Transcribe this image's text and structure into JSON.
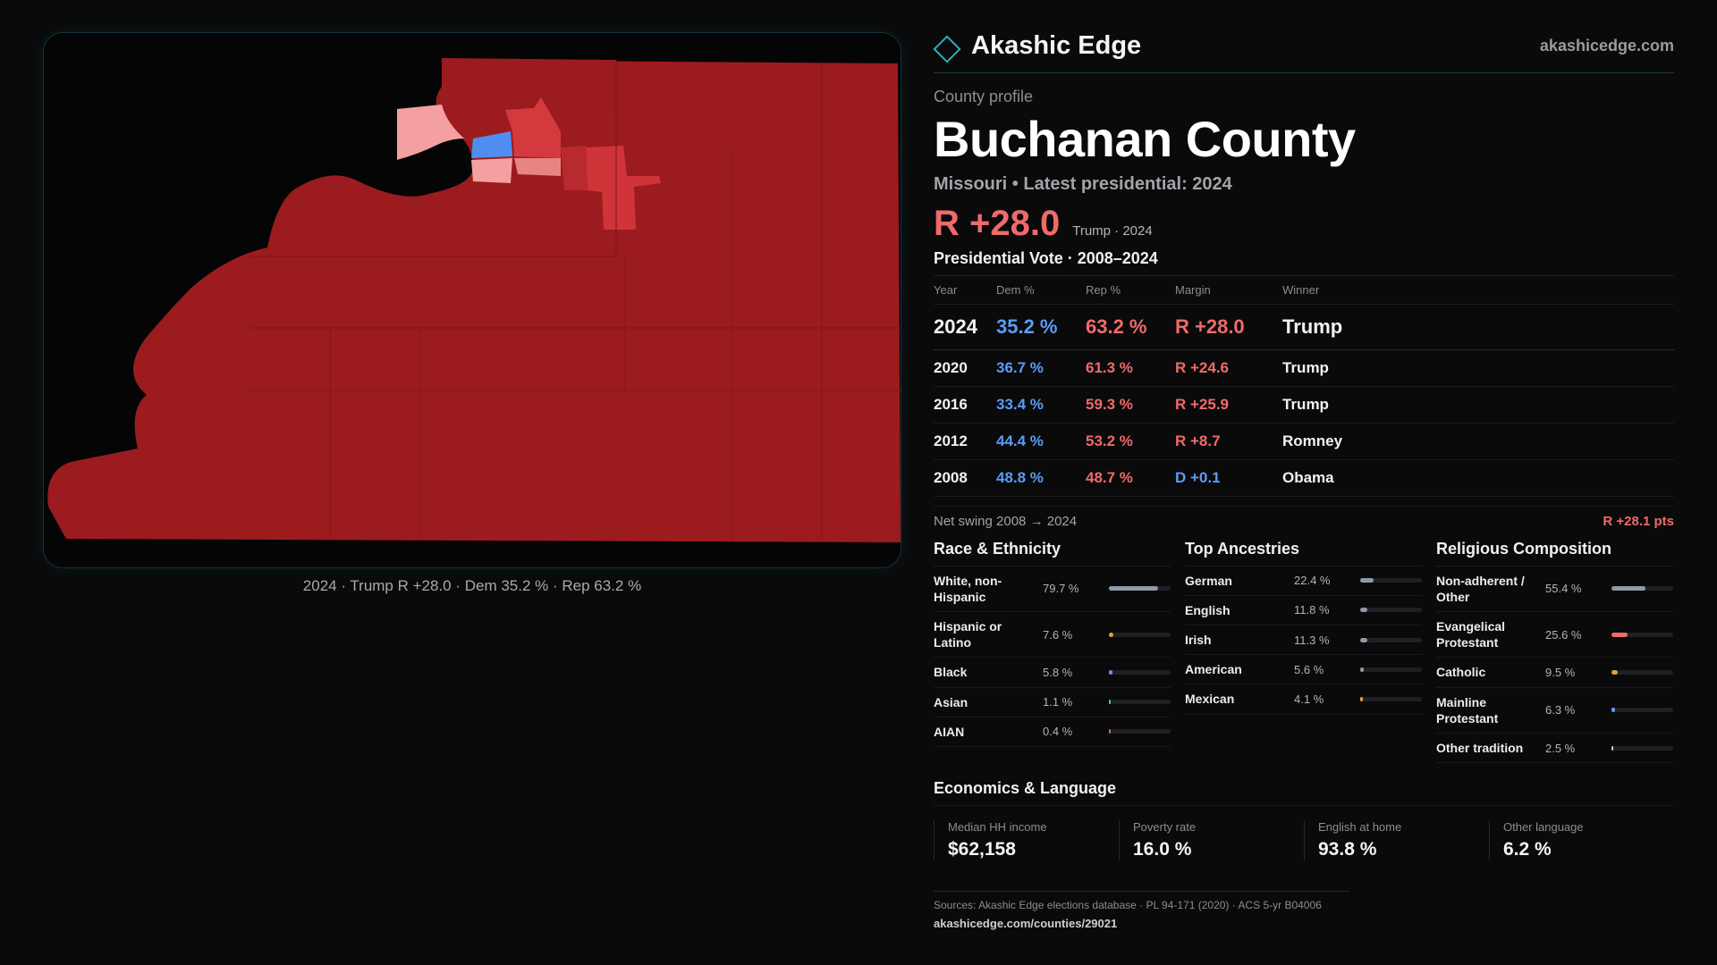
{
  "brand": {
    "name": "Akashic Edge",
    "url": "akashicedge.com",
    "accent": "#2ab0b8"
  },
  "profile": {
    "eyebrow": "County profile",
    "title": "Buchanan County",
    "subtitle": "Missouri • Latest presidential: 2024",
    "margin": "R +28.0",
    "margin_note": "Trump · 2024"
  },
  "map": {
    "caption": "2024 · Trump R +28.0 · Dem 35.2 % · Rep 63.2 %",
    "colors": {
      "strong_rep": "#9c1b1f",
      "mid_rep": "#d33a3e",
      "light_rep": "#f4a0a0",
      "dem": "#4f8ef0",
      "water": "#050506"
    }
  },
  "votes": {
    "title": "Presidential Vote · 2008–2024",
    "headers": {
      "year": "Year",
      "dem": "Dem %",
      "rep": "Rep %",
      "margin": "Margin",
      "winner": "Winner"
    },
    "rows": [
      {
        "year": "2024",
        "dem": "35.2 %",
        "rep": "63.2 %",
        "margin": "R +28.0",
        "party": "R",
        "winner": "Trump"
      },
      {
        "year": "2020",
        "dem": "36.7 %",
        "rep": "61.3 %",
        "margin": "R +24.6",
        "party": "R",
        "winner": "Trump"
      },
      {
        "year": "2016",
        "dem": "33.4 %",
        "rep": "59.3 %",
        "margin": "R +25.9",
        "party": "R",
        "winner": "Trump"
      },
      {
        "year": "2012",
        "dem": "44.4 %",
        "rep": "53.2 %",
        "margin": "R +8.7",
        "party": "R",
        "winner": "Romney"
      },
      {
        "year": "2008",
        "dem": "48.8 %",
        "rep": "48.7 %",
        "margin": "D +0.1",
        "party": "D",
        "winner": "Obama"
      }
    ],
    "swing_label": "Net swing 2008 → 2024",
    "swing_value": "R +28.1 pts"
  },
  "race": {
    "title": "Race & Ethnicity",
    "items": [
      {
        "label": "White, non-Hispanic",
        "value": "79.7 %",
        "pct": 79.7,
        "color": "#8e9aa8"
      },
      {
        "label": "Hispanic or Latino",
        "value": "7.6 %",
        "pct": 7.6,
        "color": "#e0a32e"
      },
      {
        "label": "Black",
        "value": "5.8 %",
        "pct": 5.8,
        "color": "#8a7cf0"
      },
      {
        "label": "Asian",
        "value": "1.1 %",
        "pct": 1.1,
        "color": "#5cc0a8"
      },
      {
        "label": "AIAN",
        "value": "0.4 %",
        "pct": 0.4,
        "color": "#d0704a"
      }
    ]
  },
  "ancestry": {
    "title": "Top Ancestries",
    "items": [
      {
        "label": "German",
        "value": "22.4 %",
        "pct": 22.4,
        "color": "#8e9aa8"
      },
      {
        "label": "English",
        "value": "11.8 %",
        "pct": 11.8,
        "color": "#8e9aa8"
      },
      {
        "label": "Irish",
        "value": "11.3 %",
        "pct": 11.3,
        "color": "#8e9aa8"
      },
      {
        "label": "American",
        "value": "5.6 %",
        "pct": 5.6,
        "color": "#8e9aa8"
      },
      {
        "label": "Mexican",
        "value": "4.1 %",
        "pct": 4.1,
        "color": "#e0a32e"
      }
    ]
  },
  "religion": {
    "title": "Religious Composition",
    "items": [
      {
        "label": "Non-adherent / Other",
        "value": "55.4 %",
        "pct": 55.4,
        "color": "#8e9aa8"
      },
      {
        "label": "Evangelical Protestant",
        "value": "25.6 %",
        "pct": 25.6,
        "color": "#f06a6a"
      },
      {
        "label": "Catholic",
        "value": "9.5 %",
        "pct": 9.5,
        "color": "#e0a32e"
      },
      {
        "label": "Mainline Protestant",
        "value": "6.3 %",
        "pct": 6.3,
        "color": "#5b9cf5"
      },
      {
        "label": "Other tradition",
        "value": "2.5 %",
        "pct": 2.5,
        "color": "#c9c9cf"
      }
    ]
  },
  "economics": {
    "title": "Economics & Language",
    "items": [
      {
        "label": "Median HH income",
        "value": "$62,158"
      },
      {
        "label": "Poverty rate",
        "value": "16.0 %"
      },
      {
        "label": "English at home",
        "value": "93.8 %"
      },
      {
        "label": "Other language",
        "value": "6.2 %"
      }
    ]
  },
  "sources": {
    "text": "Sources: Akashic Edge elections database · PL 94-171 (2020) · ACS 5-yr B04006",
    "url": "akashicedge.com/counties/29021"
  }
}
